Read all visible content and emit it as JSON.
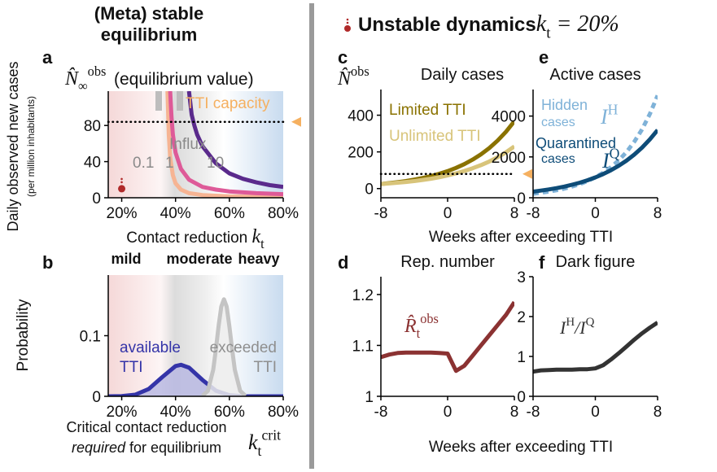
{
  "header_left": [
    "(Meta) stable",
    "equilibrium"
  ],
  "header_right": {
    "text": "Unstable dynamics",
    "math": [
      {
        "text": "k",
        "role": "base"
      },
      {
        "text": "t",
        "role": "sub"
      },
      {
        "text": " = 20%",
        "role": "base"
      }
    ]
  },
  "chart_data": [
    {
      "panel": "a",
      "type": "line",
      "symbol": [
        {
          "text": "N̂",
          "role": "base"
        },
        {
          "text": "∞",
          "role": "sub"
        },
        {
          "text": "obs",
          "role": "sup"
        }
      ],
      "symbol_label": "(equilibrium value)",
      "ylabel": "Daily observed new cases",
      "ylabel_sub": "(per million inhabitants)",
      "xlabel": "Contact reduction ",
      "xlabel_math": [
        {
          "text": "k",
          "role": "base"
        },
        {
          "text": "t",
          "role": "sub"
        }
      ],
      "xlim": [
        15,
        80
      ],
      "ylim": [
        0,
        118
      ],
      "xticks": [
        {
          "value": 20,
          "label": "20%"
        },
        {
          "value": 40,
          "label": "40%"
        },
        {
          "value": 60,
          "label": "60%"
        },
        {
          "value": 80,
          "label": "80%"
        }
      ],
      "yticks": [
        0,
        40,
        80
      ],
      "capacity": 84,
      "capacity_label": "TTI capacity",
      "influx_label": "Influx",
      "point": {
        "x": 20,
        "y": 10,
        "color": "#b02a2a"
      },
      "series": [
        {
          "name": "0.1",
          "color": "#f6b493",
          "x": [
            37,
            37.5,
            38,
            39,
            40,
            42,
            45,
            50,
            60,
            70,
            80
          ],
          "values": [
            118,
            70,
            45,
            25,
            16,
            9,
            5,
            3,
            1.5,
            1,
            0.8
          ]
        },
        {
          "name": "1",
          "color": "#de5a98",
          "x": [
            38,
            38.5,
            39,
            40,
            42,
            45,
            50,
            55,
            60,
            70,
            80
          ],
          "values": [
            118,
            90,
            70,
            50,
            32,
            20,
            12,
            9,
            7,
            5,
            4
          ]
        },
        {
          "name": "10",
          "color": "#5a2a8c",
          "x": [
            45,
            46,
            47,
            48,
            50,
            55,
            60,
            65,
            70,
            75,
            80
          ],
          "values": [
            118,
            92,
            80,
            70,
            57,
            38,
            27,
            21,
            17,
            14,
            12
          ]
        }
      ]
    },
    {
      "panel": "b",
      "type": "area",
      "ylabel": "Probability",
      "xlabel": "Critical contact reduction",
      "xlabel_em": "required",
      "xlabel_rest": " for equilibrium",
      "symbol": [
        {
          "text": "k",
          "role": "base"
        },
        {
          "text": "t",
          "role": "sub"
        },
        {
          "text": "crit",
          "role": "sup"
        }
      ],
      "regions": [
        "mild",
        "moderate",
        "heavy"
      ],
      "xlim": [
        15,
        80
      ],
      "ylim": [
        0,
        0.2
      ],
      "xticks": [
        {
          "value": 20,
          "label": "20%"
        },
        {
          "value": 40,
          "label": "40%"
        },
        {
          "value": 60,
          "label": "60%"
        },
        {
          "value": 80,
          "label": "80%"
        }
      ],
      "yticks": [
        0,
        0.1
      ],
      "series": [
        {
          "label": [
            "available",
            "TTI"
          ],
          "color": "#3434a8",
          "fill": "#b9b9e2",
          "x": [
            15,
            20,
            25,
            30,
            35,
            40,
            42,
            45,
            50,
            55,
            60,
            65,
            70,
            75,
            80
          ],
          "values": [
            0,
            0.0004,
            0.0027,
            0.012,
            0.0316,
            0.05,
            0.052,
            0.0474,
            0.027,
            0.0093,
            0.0019,
            0.0002,
            0,
            0,
            0
          ]
        },
        {
          "label": [
            "exceeded",
            "TTI"
          ],
          "color": "#c4c4c4",
          "fill": "#ececec",
          "x": [
            50,
            52,
            54,
            55,
            56,
            57,
            58,
            59,
            60,
            61,
            62,
            64,
            66
          ],
          "values": [
            0.001,
            0.009,
            0.044,
            0.078,
            0.116,
            0.148,
            0.16,
            0.148,
            0.116,
            0.078,
            0.044,
            0.009,
            0.001
          ]
        }
      ]
    },
    {
      "panel": "c",
      "type": "line",
      "title": "Daily cases",
      "symbol": [
        {
          "text": "N̂",
          "role": "base"
        },
        {
          "text": "obs",
          "role": "sup"
        }
      ],
      "xlabel": "Weeks after exceeding TTI",
      "xlim": [
        -8,
        8
      ],
      "ylim": [
        -50,
        540
      ],
      "xticks": [
        -8,
        0,
        8
      ],
      "yticks": [
        0,
        200,
        400
      ],
      "capacity": 80,
      "series": [
        {
          "name": "Limited TTI",
          "color": "#8a7200",
          "x": [
            -8,
            -7,
            -6,
            -5,
            -4,
            -3,
            -2,
            -1,
            0,
            1,
            2,
            3,
            4,
            5,
            6,
            7,
            8
          ],
          "values": [
            25,
            30,
            35,
            41,
            49,
            58,
            68,
            81,
            95,
            113,
            133,
            158,
            187,
            221,
            262,
            310,
            367
          ]
        },
        {
          "name": "Unlimited TTI",
          "color": "#d8c47a",
          "x": [
            -8,
            -7,
            -6,
            -5,
            -4,
            -3,
            -2,
            -1,
            0,
            1,
            2,
            3,
            4,
            5,
            6,
            7,
            8
          ],
          "values": [
            25,
            28,
            32,
            36,
            41,
            47,
            54,
            62,
            72,
            83,
            96,
            111,
            128,
            148,
            171,
            198,
            230
          ]
        }
      ]
    },
    {
      "panel": "d",
      "type": "line",
      "title": "Rep. number",
      "symbol": [
        {
          "text": "R̂",
          "role": "base"
        },
        {
          "text": "t",
          "role": "sub"
        },
        {
          "text": "obs",
          "role": "sup"
        }
      ],
      "xlabel": "Weeks after exceeding TTI",
      "xlim": [
        -8,
        8
      ],
      "ylim": [
        1,
        1.235
      ],
      "xticks": [
        -8,
        0,
        8
      ],
      "yticks": [
        1,
        1.1,
        1.2
      ],
      "series": [
        {
          "color": "#8b3232",
          "x": [
            -8,
            -7,
            -6,
            -5,
            -4,
            -3,
            -2,
            -1,
            0,
            1,
            2,
            3,
            4,
            5,
            6,
            7,
            8
          ],
          "values": [
            1.077,
            1.082,
            1.085,
            1.086,
            1.086,
            1.086,
            1.086,
            1.085,
            1.084,
            1.05,
            1.06,
            1.08,
            1.1,
            1.12,
            1.14,
            1.16,
            1.185
          ]
        }
      ]
    },
    {
      "panel": "e",
      "type": "line",
      "title": "Active cases",
      "xlim": [
        -8,
        8
      ],
      "ylim": [
        0,
        5300
      ],
      "xticks": [
        -8,
        0,
        8
      ],
      "yticks": [
        0,
        2000,
        4000
      ],
      "series": [
        {
          "label": [
            "Hidden",
            "cases"
          ],
          "math": [
            {
              "text": "I",
              "role": "base"
            },
            {
              "text": "H",
              "role": "sup"
            }
          ],
          "color": "#7fb2d8",
          "dashed": true,
          "x": [
            -8,
            -7,
            -6,
            -5,
            -4,
            -3,
            -2,
            -1,
            0,
            1,
            2,
            3,
            4,
            5,
            6,
            7,
            8
          ],
          "values": [
            200,
            245,
            299,
            366,
            447,
            547,
            669,
            818,
            1000,
            1223,
            1496,
            1830,
            2238,
            2737,
            3347,
            4093,
            5006
          ]
        },
        {
          "label": [
            "Quarantined",
            "cases"
          ],
          "math": [
            {
              "text": "I",
              "role": "base"
            },
            {
              "text": "Q",
              "role": "sup"
            }
          ],
          "color": "#0e4c78",
          "x": [
            -8,
            -7,
            -6,
            -5,
            -4,
            -3,
            -2,
            -1,
            0,
            1,
            2,
            3,
            4,
            5,
            6,
            7,
            8
          ],
          "values": [
            300,
            349,
            405,
            471,
            547,
            636,
            739,
            858,
            997,
            1159,
            1346,
            1565,
            1818,
            2112,
            2455,
            2852,
            3314
          ]
        }
      ]
    },
    {
      "panel": "f",
      "type": "line",
      "title": "Dark figure",
      "symbol": [
        {
          "text": "I",
          "role": "base"
        },
        {
          "text": "H",
          "role": "sup"
        },
        {
          "text": "/I",
          "role": "base"
        },
        {
          "text": "Q",
          "role": "sup"
        }
      ],
      "xlim": [
        -8,
        8
      ],
      "ylim": [
        0,
        3
      ],
      "xticks": [
        -8,
        0,
        8
      ],
      "yticks": [
        0,
        1,
        2,
        3
      ],
      "series": [
        {
          "color": "#333333",
          "x": [
            -8,
            -7,
            -6,
            -5,
            -4,
            -3,
            -2,
            -1,
            0,
            1,
            2,
            3,
            4,
            5,
            6,
            7,
            8
          ],
          "values": [
            0.62,
            0.65,
            0.66,
            0.67,
            0.67,
            0.67,
            0.68,
            0.68,
            0.7,
            0.78,
            0.92,
            1.08,
            1.25,
            1.42,
            1.58,
            1.72,
            1.85
          ]
        }
      ]
    }
  ]
}
